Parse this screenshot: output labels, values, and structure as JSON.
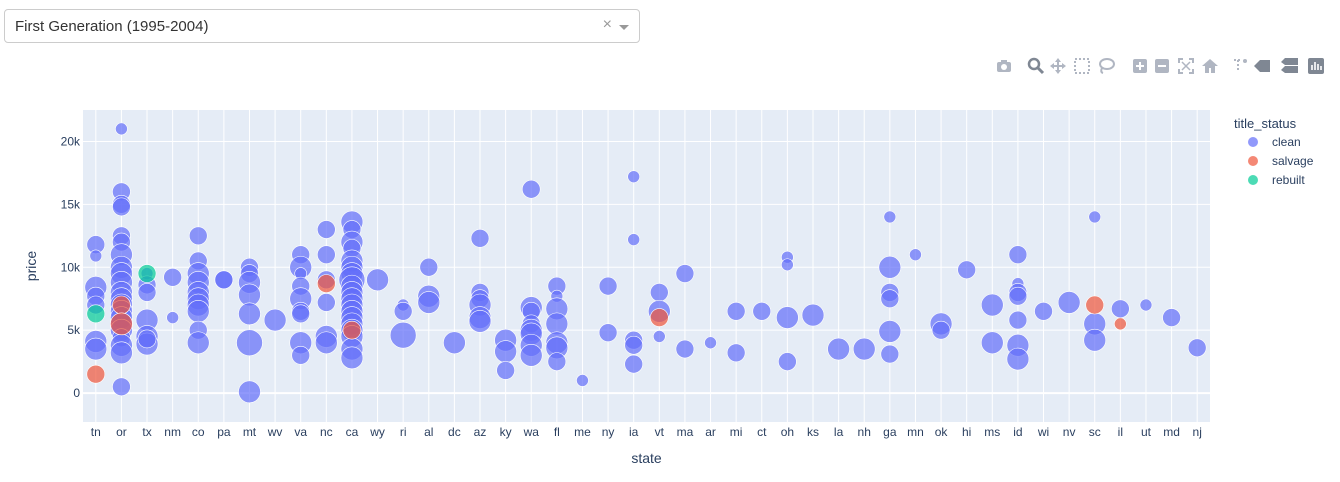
{
  "dropdown": {
    "selected": "First Generation (1995-2004)"
  },
  "modebar": [
    "camera-icon",
    "zoom-icon",
    "pan-icon",
    "box-select-icon",
    "lasso-select-icon",
    "zoom-in-icon",
    "zoom-out-icon",
    "autoscale-icon",
    "reset-axes-icon",
    "spike-lines-icon",
    "hover-closest-icon",
    "hover-compare-icon",
    "plotly-logo-icon"
  ],
  "colors": {
    "clean": "#636efa",
    "salvage": "#ef553b",
    "rebuilt": "#00cc96",
    "plot_bg": "#e5ecf6",
    "grid": "#ffffff"
  },
  "chart_data": {
    "type": "scatter",
    "xlabel": "state",
    "ylabel": "price",
    "ylim": [
      -2300,
      22500
    ],
    "yticks": [
      0,
      5000,
      10000,
      15000,
      20000
    ],
    "ytick_labels": [
      "0",
      "5k",
      "10k",
      "15k",
      "20k"
    ],
    "categories": [
      "tn",
      "or",
      "tx",
      "nm",
      "co",
      "pa",
      "mt",
      "wv",
      "va",
      "nc",
      "ca",
      "wy",
      "ri",
      "al",
      "dc",
      "az",
      "ky",
      "wa",
      "fl",
      "me",
      "ny",
      "ia",
      "vt",
      "ma",
      "ar",
      "mi",
      "ct",
      "oh",
      "ks",
      "la",
      "nh",
      "ga",
      "mn",
      "ok",
      "hi",
      "ms",
      "id",
      "wi",
      "nv",
      "sc",
      "il",
      "ut",
      "md",
      "nj"
    ],
    "legend": {
      "title": "title_status",
      "placement": "right",
      "entries": [
        "clean",
        "salvage",
        "rebuilt"
      ]
    },
    "series": [
      {
        "name": "clean",
        "points": [
          [
            "tn",
            11800,
            2
          ],
          [
            "tn",
            10900,
            1
          ],
          [
            "tn",
            8400,
            3
          ],
          [
            "tn",
            7700,
            2
          ],
          [
            "tn",
            4100,
            3
          ],
          [
            "tn",
            3500,
            3
          ],
          [
            "tn",
            7000,
            2
          ],
          [
            "or",
            21000,
            1
          ],
          [
            "or",
            16000,
            2
          ],
          [
            "or",
            15000,
            2
          ],
          [
            "or",
            14800,
            2
          ],
          [
            "or",
            12500,
            2
          ],
          [
            "or",
            12000,
            2
          ],
          [
            "or",
            11000,
            3
          ],
          [
            "or",
            10000,
            3
          ],
          [
            "or",
            9500,
            3
          ],
          [
            "or",
            8800,
            3
          ],
          [
            "or",
            8000,
            3
          ],
          [
            "or",
            7500,
            3
          ],
          [
            "or",
            7000,
            3
          ],
          [
            "or",
            6500,
            3
          ],
          [
            "or",
            6000,
            3
          ],
          [
            "or",
            5500,
            3
          ],
          [
            "or",
            5000,
            3
          ],
          [
            "or",
            4400,
            2
          ],
          [
            "or",
            3800,
            3
          ],
          [
            "or",
            3200,
            3
          ],
          [
            "or",
            500,
            2
          ],
          [
            "tx",
            9500,
            1
          ],
          [
            "tx",
            8600,
            2
          ],
          [
            "tx",
            8000,
            2
          ],
          [
            "tx",
            5800,
            3
          ],
          [
            "tx",
            4500,
            3
          ],
          [
            "tx",
            3900,
            3
          ],
          [
            "tx",
            4300,
            2
          ],
          [
            "nm",
            9200,
            2
          ],
          [
            "nm",
            6000,
            1
          ],
          [
            "co",
            12500,
            2
          ],
          [
            "co",
            10500,
            2
          ],
          [
            "co",
            9500,
            3
          ],
          [
            "co",
            8800,
            3
          ],
          [
            "co",
            8000,
            3
          ],
          [
            "co",
            7500,
            3
          ],
          [
            "co",
            7000,
            3
          ],
          [
            "co",
            6500,
            3
          ],
          [
            "co",
            5000,
            2
          ],
          [
            "co",
            4000,
            3
          ],
          [
            "pa",
            9000,
            2
          ],
          [
            "pa",
            9000,
            2
          ],
          [
            "mt",
            10000,
            2
          ],
          [
            "mt",
            9500,
            2
          ],
          [
            "mt",
            8800,
            3
          ],
          [
            "mt",
            7800,
            3
          ],
          [
            "mt",
            6300,
            3
          ],
          [
            "mt",
            4000,
            4
          ],
          [
            "mt",
            100,
            3
          ],
          [
            "wv",
            5800,
            3
          ],
          [
            "va",
            11000,
            2
          ],
          [
            "va",
            10000,
            3
          ],
          [
            "va",
            9500,
            1
          ],
          [
            "va",
            8500,
            2
          ],
          [
            "va",
            7500,
            3
          ],
          [
            "va",
            6500,
            2
          ],
          [
            "va",
            6300,
            2
          ],
          [
            "va",
            4000,
            3
          ],
          [
            "va",
            3000,
            2
          ],
          [
            "nc",
            13000,
            2
          ],
          [
            "nc",
            11000,
            2
          ],
          [
            "nc",
            9000,
            2
          ],
          [
            "nc",
            7200,
            2
          ],
          [
            "nc",
            4500,
            3
          ],
          [
            "nc",
            4000,
            3
          ],
          [
            "ca",
            13600,
            3
          ],
          [
            "ca",
            13000,
            2
          ],
          [
            "ca",
            12000,
            3
          ],
          [
            "ca",
            11500,
            2
          ],
          [
            "ca",
            10500,
            3
          ],
          [
            "ca",
            10000,
            3
          ],
          [
            "ca",
            9500,
            3
          ],
          [
            "ca",
            9000,
            4
          ],
          [
            "ca",
            8500,
            3
          ],
          [
            "ca",
            8000,
            3
          ],
          [
            "ca",
            7500,
            3
          ],
          [
            "ca",
            7000,
            3
          ],
          [
            "ca",
            6500,
            3
          ],
          [
            "ca",
            6000,
            3
          ],
          [
            "ca",
            5500,
            3
          ],
          [
            "ca",
            5000,
            3
          ],
          [
            "ca",
            4500,
            3
          ],
          [
            "ca",
            3500,
            3
          ],
          [
            "ca",
            2800,
            3
          ],
          [
            "wy",
            9000,
            3
          ],
          [
            "ri",
            7000,
            1
          ],
          [
            "ri",
            6500,
            2
          ],
          [
            "ri",
            4600,
            4
          ],
          [
            "al",
            10000,
            2
          ],
          [
            "al",
            7700,
            3
          ],
          [
            "al",
            7200,
            3
          ],
          [
            "dc",
            4000,
            3
          ],
          [
            "az",
            12300,
            2
          ],
          [
            "az",
            8000,
            2
          ],
          [
            "az",
            7500,
            2
          ],
          [
            "az",
            7000,
            3
          ],
          [
            "az",
            6000,
            3
          ],
          [
            "az",
            5700,
            3
          ],
          [
            "ky",
            4200,
            3
          ],
          [
            "ky",
            3300,
            3
          ],
          [
            "ky",
            1800,
            2
          ],
          [
            "wa",
            16200,
            2
          ],
          [
            "wa",
            6800,
            3
          ],
          [
            "wa",
            6500,
            2
          ],
          [
            "wa",
            5500,
            2
          ],
          [
            "wa",
            5000,
            3
          ],
          [
            "wa",
            4700,
            3
          ],
          [
            "wa",
            3800,
            3
          ],
          [
            "wa",
            3000,
            3
          ],
          [
            "fl",
            8500,
            2
          ],
          [
            "fl",
            7700,
            1
          ],
          [
            "fl",
            6700,
            3
          ],
          [
            "fl",
            5500,
            3
          ],
          [
            "fl",
            4000,
            3
          ],
          [
            "fl",
            3600,
            3
          ],
          [
            "fl",
            2500,
            2
          ],
          [
            "me",
            1000,
            1
          ],
          [
            "ny",
            8500,
            2
          ],
          [
            "ny",
            4800,
            2
          ],
          [
            "ia",
            17200,
            1
          ],
          [
            "ia",
            12200,
            1
          ],
          [
            "ia",
            4200,
            2
          ],
          [
            "ia",
            3800,
            2
          ],
          [
            "ia",
            2300,
            2
          ],
          [
            "vt",
            8000,
            2
          ],
          [
            "vt",
            6500,
            3
          ],
          [
            "vt",
            4500,
            1
          ],
          [
            "ma",
            9500,
            2
          ],
          [
            "ma",
            3500,
            2
          ],
          [
            "ar",
            4000,
            1
          ],
          [
            "mi",
            6500,
            2
          ],
          [
            "mi",
            3200,
            2
          ],
          [
            "ct",
            6500,
            2
          ],
          [
            "oh",
            10800,
            1
          ],
          [
            "oh",
            10200,
            1
          ],
          [
            "oh",
            6000,
            3
          ],
          [
            "oh",
            2500,
            2
          ],
          [
            "ks",
            6200,
            3
          ],
          [
            "la",
            3500,
            3
          ],
          [
            "nh",
            3500,
            3
          ],
          [
            "ga",
            14000,
            1
          ],
          [
            "ga",
            10000,
            3
          ],
          [
            "ga",
            8000,
            2
          ],
          [
            "ga",
            7500,
            2
          ],
          [
            "ga",
            4900,
            3
          ],
          [
            "ga",
            3100,
            2
          ],
          [
            "mn",
            11000,
            1
          ],
          [
            "ok",
            5500,
            3
          ],
          [
            "ok",
            5000,
            2
          ],
          [
            "hi",
            9800,
            2
          ],
          [
            "ms",
            7000,
            3
          ],
          [
            "ms",
            4000,
            3
          ],
          [
            "id",
            11000,
            2
          ],
          [
            "id",
            8700,
            1
          ],
          [
            "id",
            8000,
            2
          ],
          [
            "id",
            7700,
            2
          ],
          [
            "id",
            5800,
            2
          ],
          [
            "id",
            3800,
            3
          ],
          [
            "id",
            2700,
            3
          ],
          [
            "wi",
            6500,
            2
          ],
          [
            "nv",
            7200,
            3
          ],
          [
            "sc",
            14000,
            1
          ],
          [
            "sc",
            5500,
            3
          ],
          [
            "sc",
            4200,
            3
          ],
          [
            "il",
            6700,
            2
          ],
          [
            "ut",
            7000,
            1
          ],
          [
            "md",
            6000,
            2
          ],
          [
            "nj",
            3600,
            2
          ]
        ]
      },
      {
        "name": "salvage",
        "points": [
          [
            "tn",
            1500,
            2
          ],
          [
            "or",
            7000,
            2
          ],
          [
            "or",
            5500,
            3
          ],
          [
            "nc",
            8700,
            2
          ],
          [
            "ca",
            5000,
            2
          ],
          [
            "vt",
            6000,
            2
          ],
          [
            "sc",
            7000,
            2
          ],
          [
            "il",
            5500,
            1
          ]
        ]
      },
      {
        "name": "rebuilt",
        "points": [
          [
            "tn",
            6300,
            2
          ],
          [
            "tx",
            9500,
            2
          ]
        ]
      }
    ]
  }
}
